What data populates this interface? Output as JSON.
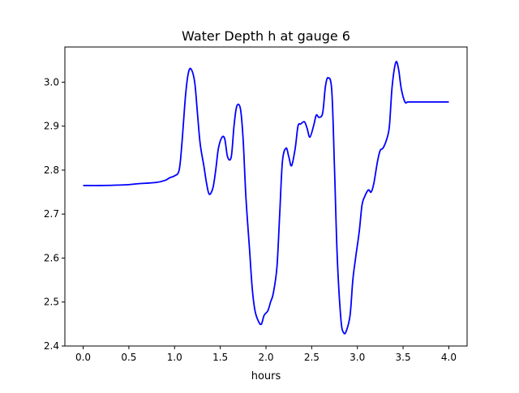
{
  "chart_data": {
    "type": "line",
    "title": "Water Depth h at gauge 6",
    "xlabel": "hours",
    "ylabel": "",
    "xlim": [
      -0.2,
      4.2
    ],
    "ylim": [
      2.4,
      3.08
    ],
    "xticks": [
      0.0,
      0.5,
      1.0,
      1.5,
      2.0,
      2.5,
      3.0,
      3.5,
      4.0
    ],
    "xtick_labels": [
      "0.0",
      "0.5",
      "1.0",
      "1.5",
      "2.0",
      "2.5",
      "3.0",
      "3.5",
      "4.0"
    ],
    "yticks": [
      2.4,
      2.5,
      2.6,
      2.7,
      2.8,
      2.9,
      3.0
    ],
    "ytick_labels": [
      "2.4",
      "2.5",
      "2.6",
      "2.7",
      "2.8",
      "2.9",
      "3.0"
    ],
    "grid": false,
    "legend": "none",
    "series": [
      {
        "color": "#0000ff",
        "x": [
          0.0,
          0.2,
          0.4,
          0.5,
          0.6,
          0.8,
          0.9,
          0.95,
          1.0,
          1.05,
          1.08,
          1.12,
          1.15,
          1.18,
          1.22,
          1.25,
          1.28,
          1.32,
          1.35,
          1.38,
          1.42,
          1.45,
          1.48,
          1.52,
          1.55,
          1.58,
          1.62,
          1.65,
          1.68,
          1.72,
          1.75,
          1.78,
          1.82,
          1.85,
          1.88,
          1.92,
          1.95,
          1.98,
          2.02,
          2.05,
          2.08,
          2.12,
          2.15,
          2.18,
          2.22,
          2.25,
          2.28,
          2.32,
          2.35,
          2.38,
          2.42,
          2.45,
          2.48,
          2.52,
          2.55,
          2.58,
          2.62,
          2.65,
          2.68,
          2.72,
          2.75,
          2.78,
          2.82,
          2.85,
          2.88,
          2.92,
          2.95,
          2.98,
          3.02,
          3.05,
          3.08,
          3.12,
          3.15,
          3.18,
          3.22,
          3.25,
          3.28,
          3.32,
          3.35,
          3.38,
          3.42,
          3.45,
          3.48,
          3.52,
          3.55,
          3.58,
          3.62,
          3.65,
          3.68,
          3.72,
          3.75,
          3.78,
          3.82,
          3.85,
          3.88,
          3.92,
          3.95,
          4.0
        ],
        "y": [
          2.765,
          2.765,
          2.766,
          2.767,
          2.769,
          2.772,
          2.777,
          2.783,
          2.787,
          2.8,
          2.86,
          2.97,
          3.02,
          3.03,
          3.0,
          2.93,
          2.86,
          2.81,
          2.77,
          2.745,
          2.76,
          2.8,
          2.85,
          2.875,
          2.87,
          2.83,
          2.83,
          2.9,
          2.945,
          2.94,
          2.87,
          2.74,
          2.62,
          2.53,
          2.48,
          2.455,
          2.45,
          2.47,
          2.48,
          2.5,
          2.52,
          2.58,
          2.7,
          2.82,
          2.85,
          2.83,
          2.81,
          2.85,
          2.9,
          2.905,
          2.91,
          2.895,
          2.875,
          2.9,
          2.925,
          2.92,
          2.93,
          2.99,
          3.01,
          2.98,
          2.8,
          2.6,
          2.46,
          2.43,
          2.435,
          2.47,
          2.55,
          2.6,
          2.66,
          2.72,
          2.74,
          2.755,
          2.75,
          2.77,
          2.82,
          2.845,
          2.85,
          2.87,
          2.9,
          2.99,
          3.045,
          3.03,
          2.985,
          2.955,
          2.955,
          2.955,
          2.955,
          2.955,
          2.955,
          2.955,
          2.955,
          2.955,
          2.955,
          2.955,
          2.955,
          2.955,
          2.955,
          2.955
        ]
      }
    ]
  }
}
